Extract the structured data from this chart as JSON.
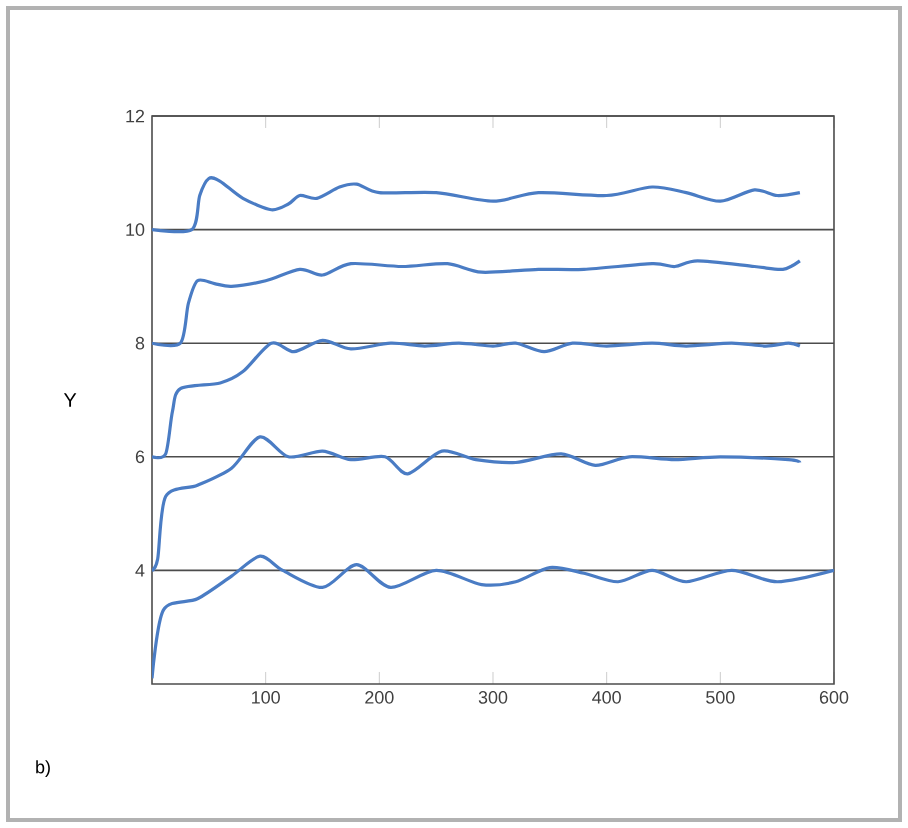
{
  "chart_data": {
    "type": "line",
    "ylabel": "Y",
    "annotations": [
      "b)"
    ],
    "xlim": [
      0,
      600
    ],
    "ylim": [
      2,
      12
    ],
    "xticks": [
      100,
      200,
      300,
      400,
      500,
      600
    ],
    "yticks": [
      4,
      6,
      8,
      10,
      12
    ],
    "grid": "y",
    "marker": "none",
    "line_style": "solid",
    "series": [
      {
        "color": "#4a7cc4",
        "x": [
          0,
          35,
          42,
          50,
          60,
          80,
          105,
          120,
          130,
          145,
          165,
          180,
          200,
          250,
          300,
          340,
          400,
          440,
          470,
          500,
          530,
          550,
          570
        ],
        "values": [
          10,
          10,
          10.6,
          10.9,
          10.85,
          10.55,
          10.35,
          10.45,
          10.6,
          10.55,
          10.75,
          10.8,
          10.65,
          10.65,
          10.5,
          10.65,
          10.6,
          10.75,
          10.65,
          10.5,
          10.7,
          10.6,
          10.65
        ]
      },
      {
        "color": "#4a7cc4",
        "x": [
          0,
          25,
          32,
          40,
          55,
          70,
          100,
          130,
          150,
          175,
          220,
          260,
          290,
          340,
          380,
          440,
          460,
          480,
          530,
          555,
          570
        ],
        "values": [
          8,
          8,
          8.7,
          9.1,
          9.05,
          9.0,
          9.1,
          9.3,
          9.2,
          9.4,
          9.35,
          9.4,
          9.25,
          9.3,
          9.3,
          9.4,
          9.35,
          9.45,
          9.35,
          9.3,
          9.45
        ]
      },
      {
        "color": "#4a7cc4",
        "x": [
          0,
          12,
          18,
          25,
          60,
          80,
          105,
          125,
          150,
          175,
          210,
          240,
          270,
          300,
          320,
          345,
          370,
          400,
          440,
          470,
          510,
          540,
          560,
          570
        ],
        "values": [
          6,
          6.05,
          6.8,
          7.2,
          7.3,
          7.5,
          8.0,
          7.85,
          8.05,
          7.9,
          8.0,
          7.95,
          8.0,
          7.95,
          8.0,
          7.85,
          8.0,
          7.95,
          8.0,
          7.95,
          8.0,
          7.95,
          8.0,
          7.95
        ]
      },
      {
        "color": "#4a7cc4",
        "x": [
          0,
          5,
          12,
          40,
          70,
          95,
          120,
          150,
          175,
          205,
          225,
          255,
          285,
          320,
          360,
          390,
          420,
          460,
          500,
          560,
          570
        ],
        "values": [
          4.0,
          4.2,
          5.3,
          5.5,
          5.8,
          6.35,
          6.0,
          6.1,
          5.95,
          6.0,
          5.7,
          6.1,
          5.95,
          5.9,
          6.05,
          5.85,
          6.0,
          5.95,
          6.0,
          5.95,
          5.9
        ]
      },
      {
        "color": "#4a7cc4",
        "x": [
          0,
          10,
          40,
          70,
          95,
          115,
          150,
          180,
          210,
          250,
          290,
          320,
          350,
          380,
          410,
          440,
          470,
          510,
          550,
          600
        ],
        "values": [
          2.1,
          3.3,
          3.5,
          3.9,
          4.25,
          4.0,
          3.7,
          4.1,
          3.7,
          4.0,
          3.75,
          3.8,
          4.05,
          3.95,
          3.8,
          4.0,
          3.8,
          4.0,
          3.8,
          4.0
        ]
      }
    ]
  }
}
